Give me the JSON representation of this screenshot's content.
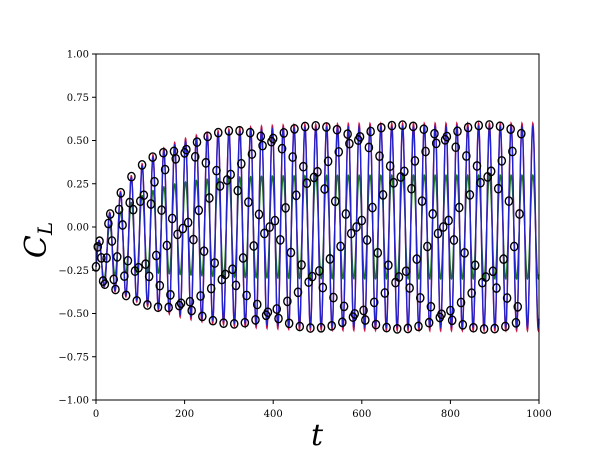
{
  "chart_data": {
    "type": "line",
    "title": "",
    "xlabel": "t",
    "ylabel_main": "C",
    "ylabel_sub": "L",
    "xlim": [
      0,
      1000
    ],
    "ylim": [
      -1.0,
      1.0
    ],
    "x_ticks": [
      0,
      200,
      400,
      600,
      800,
      1000
    ],
    "x_tick_labels": [
      "0",
      "200",
      "400",
      "600",
      "800",
      "1000"
    ],
    "y_ticks": [
      -1.0,
      -0.75,
      -0.5,
      -0.25,
      0.0,
      0.25,
      0.5,
      0.75,
      1.0
    ],
    "y_tick_labels": [
      "−1.00",
      "−0.75",
      "−0.50",
      "−0.25",
      "0.00",
      "0.25",
      "0.50",
      "0.75",
      "1.00"
    ],
    "grid": false,
    "legend": "none",
    "series": [
      {
        "color": "#1a7a1a",
        "marker": "line",
        "period": 24.5,
        "phase_offset": 0.0,
        "amplitude_start": 0.1,
        "amplitude_end": 0.3,
        "x_start": 0,
        "x_end": 1000,
        "y_offset": -0.23
      },
      {
        "color": "#cc1144",
        "marker": "line",
        "period": 24.5,
        "phase_offset": 0.0,
        "amplitude_start": 0.1,
        "amplitude_end": 0.6,
        "x_start": 0,
        "x_end": 1000,
        "y_offset": -0.23
      },
      {
        "color": "#2222cc",
        "marker": "line",
        "period": 24.5,
        "phase_offset": 0.0,
        "amplitude_start": 0.1,
        "amplitude_end": 0.58,
        "x_start": 0,
        "x_end": 1000,
        "y_offset": -0.23
      },
      {
        "color": "#000000",
        "marker": "circle",
        "period": 24.5,
        "phase_offset": 0.0,
        "amplitude_start": 0.1,
        "amplitude_end": 0.59,
        "x_start": 0,
        "x_end": 960,
        "y_offset": -0.23,
        "sample_step": 4
      }
    ]
  }
}
